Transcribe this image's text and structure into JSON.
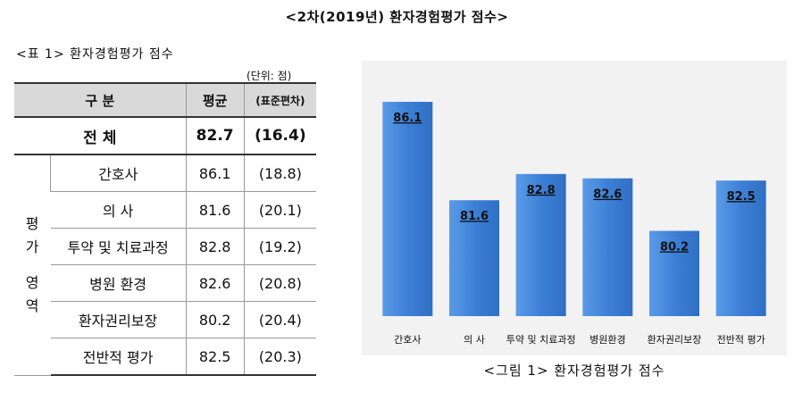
{
  "title": "<2차(2019년) 환자경험평가 점수>",
  "table": {
    "caption": "<표 1> 환자경험평가 점수",
    "unit": "(단위: 점)",
    "headers": {
      "category": "구 분",
      "mean": "평균",
      "sd": "(표준편차)"
    },
    "total": {
      "label": "전 체",
      "mean": "82.7",
      "sd": "(16.4)"
    },
    "area_label": [
      "평",
      "가",
      "영",
      "역"
    ],
    "rows": [
      {
        "label": "간호사",
        "mean": "86.1",
        "sd": "(18.8)"
      },
      {
        "label": "의 사",
        "mean": "81.6",
        "sd": "(20.1)"
      },
      {
        "label": "투약 및 치료과정",
        "mean": "82.8",
        "sd": "(19.2)"
      },
      {
        "label": "병원 환경",
        "mean": "82.6",
        "sd": "(20.8)"
      },
      {
        "label": "환자권리보장",
        "mean": "80.2",
        "sd": "(20.4)"
      },
      {
        "label": "전반적 평가",
        "mean": "82.5",
        "sd": "(20.3)"
      }
    ]
  },
  "chart_caption": "<그림 1> 환자경험평가 점수",
  "colors": {
    "bar": "#3b7dd8",
    "bar_light": "#6aa6ee",
    "panel": "#f2f2f2",
    "header": "#d9d9d9"
  },
  "chart_data": {
    "type": "bar",
    "categories": [
      "간호사",
      "의 사",
      "투약 및 치료과정",
      "병원환경",
      "환자권리보장",
      "전반적 평가"
    ],
    "values": [
      86.1,
      81.6,
      82.8,
      82.6,
      80.2,
      82.5
    ],
    "title": "",
    "xlabel": "",
    "ylabel": "",
    "ylim": [
      76.3,
      87
    ],
    "grid": false,
    "legend": "none"
  }
}
